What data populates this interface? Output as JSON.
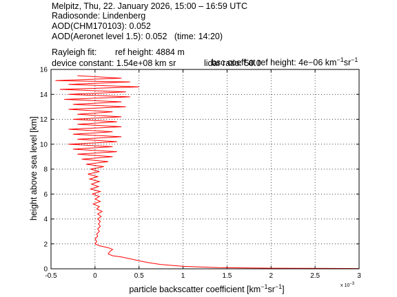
{
  "header": {
    "line1": "Melpitz, Thu, 22. January 2026, 15:00 – 16:59 UTC",
    "line2": "Radiosonde: Lindenberg",
    "line3": "AOD(CHM170103): 0.052",
    "line4": "AOD(Aeronet level 1.5): 0.052   (time: 14:20)",
    "rayleigh_label": "Rayleigh fit:",
    "ref_height": "ref height: 4884 m",
    "bsc_coeff_prefix": "bsc coeff at ref height: 4e−06 km",
    "bsc_coeff_sr": "sr",
    "device_constant": "device constant: 1.54e+08 km sr",
    "lidar_ratio": "lidar ratio: 50.0"
  },
  "axes": {
    "xlabel_main": "particle backscatter coefficient [km",
    "xlabel_sr": "sr",
    "xlabel_end": "]",
    "exp1": "−1",
    "exp2": "−1",
    "ylabel": "height above sea level [km]",
    "x_multiplier_base": "x 10",
    "x_multiplier_exp": "−3"
  },
  "chart_data": {
    "type": "line",
    "grid": true,
    "xlim": [
      -0.5,
      3
    ],
    "ylim": [
      0,
      16
    ],
    "x_ticks": [
      -0.5,
      0,
      0.5,
      1,
      1.5,
      2,
      2.5,
      3
    ],
    "x_tick_labels": [
      "-0.5",
      "0",
      "0.5",
      "1",
      "1.5",
      "2",
      "2.5",
      "3"
    ],
    "y_ticks": [
      0,
      2,
      4,
      6,
      8,
      10,
      12,
      14,
      16
    ],
    "y_tick_labels": [
      "0",
      "2",
      "4",
      "6",
      "8",
      "10",
      "12",
      "14",
      "16"
    ],
    "x_scale_note": "values in units of 1e-3 km^-1 sr^-1",
    "series": [
      {
        "color": "#ff0000",
        "points": [
          [
            3.0,
            0.02
          ],
          [
            2.0,
            0.05
          ],
          [
            1.4,
            0.1
          ],
          [
            1.0,
            0.2
          ],
          [
            0.75,
            0.35
          ],
          [
            0.6,
            0.5
          ],
          [
            0.5,
            0.65
          ],
          [
            0.4,
            0.8
          ],
          [
            0.3,
            0.95
          ],
          [
            0.2,
            1.05
          ],
          [
            0.15,
            1.2
          ],
          [
            0.17,
            1.4
          ],
          [
            0.2,
            1.55
          ],
          [
            0.15,
            1.7
          ],
          [
            0.05,
            1.85
          ],
          [
            0.0,
            2.0
          ],
          [
            0.02,
            2.2
          ],
          [
            0.0,
            2.4
          ],
          [
            0.03,
            2.6
          ],
          [
            0.02,
            2.8
          ],
          [
            0.05,
            3.0
          ],
          [
            0.03,
            3.2
          ],
          [
            0.06,
            3.4
          ],
          [
            0.04,
            3.6
          ],
          [
            0.06,
            3.8
          ],
          [
            0.03,
            4.0
          ],
          [
            0.07,
            4.2
          ],
          [
            0.03,
            4.4
          ],
          [
            0.08,
            4.6
          ],
          [
            0.02,
            4.8
          ],
          [
            0.05,
            5.0
          ],
          [
            -0.02,
            5.2
          ],
          [
            0.06,
            5.4
          ],
          [
            0.0,
            5.6
          ],
          [
            0.05,
            5.8
          ],
          [
            -0.03,
            6.0
          ],
          [
            0.06,
            6.2
          ],
          [
            -0.05,
            6.4
          ],
          [
            0.04,
            6.6
          ],
          [
            -0.04,
            6.8
          ],
          [
            0.05,
            7.0
          ],
          [
            -0.06,
            7.2
          ],
          [
            0.03,
            7.4
          ],
          [
            -0.08,
            7.6
          ],
          [
            0.05,
            7.8
          ],
          [
            -0.05,
            8.0
          ],
          [
            0.1,
            8.2
          ],
          [
            -0.1,
            8.4
          ],
          [
            0.15,
            8.6
          ],
          [
            -0.15,
            8.8
          ],
          [
            0.2,
            9.0
          ],
          [
            -0.2,
            9.2
          ],
          [
            0.25,
            9.4
          ],
          [
            -0.25,
            9.6
          ],
          [
            0.2,
            9.8
          ],
          [
            -0.3,
            10.0
          ],
          [
            0.25,
            10.2
          ],
          [
            -0.2,
            10.4
          ],
          [
            0.3,
            10.6
          ],
          [
            -0.25,
            10.8
          ],
          [
            0.2,
            11.0
          ],
          [
            -0.3,
            11.2
          ],
          [
            0.3,
            11.4
          ],
          [
            -0.2,
            11.6
          ],
          [
            0.25,
            11.8
          ],
          [
            -0.25,
            12.0
          ],
          [
            0.3,
            12.2
          ],
          [
            -0.2,
            12.4
          ],
          [
            0.2,
            12.6
          ],
          [
            -0.3,
            12.8
          ],
          [
            0.35,
            13.0
          ],
          [
            -0.25,
            13.2
          ],
          [
            0.3,
            13.4
          ],
          [
            -0.35,
            13.6
          ],
          [
            0.4,
            13.8
          ],
          [
            -0.3,
            14.0
          ],
          [
            0.35,
            14.2
          ],
          [
            -0.4,
            14.4
          ],
          [
            0.5,
            14.6
          ],
          [
            -0.3,
            14.8
          ],
          [
            0.4,
            15.0
          ],
          [
            -0.45,
            15.1
          ],
          [
            0.3,
            15.3
          ],
          [
            -0.2,
            15.5
          ]
        ]
      }
    ]
  }
}
